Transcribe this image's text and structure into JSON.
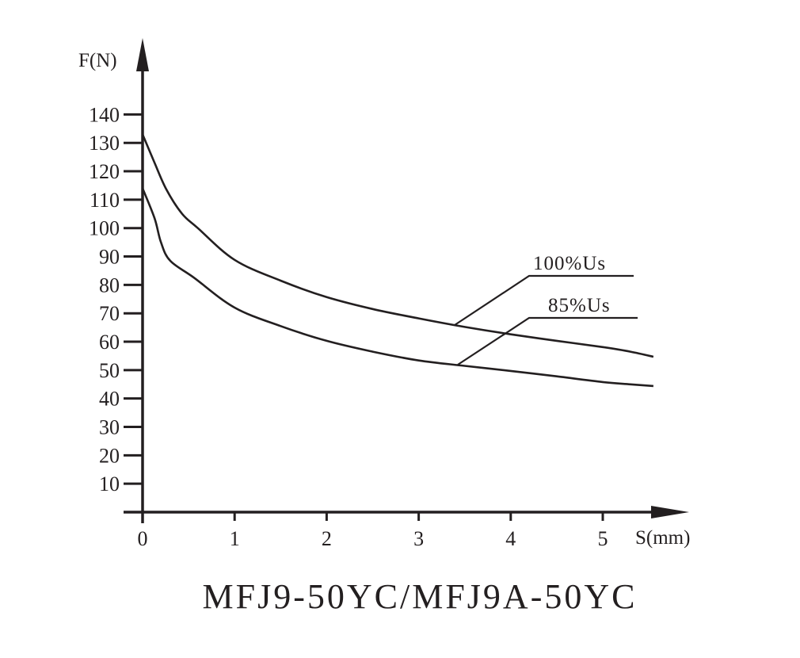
{
  "chart_data": {
    "type": "line",
    "title": "MFJ9-50YC/MFJ9A-50YC",
    "xlabel": "S(mm)",
    "ylabel": "F(N)",
    "xlim": [
      0,
      5.6
    ],
    "ylim": [
      0,
      140
    ],
    "grid": false,
    "x_ticks": [
      "0",
      "1",
      "2",
      "3",
      "4",
      "5"
    ],
    "y_ticks": [
      "140",
      "130",
      "120",
      "110",
      "100",
      "90",
      "80",
      "70",
      "60",
      "50",
      "40",
      "30",
      "20",
      "10"
    ],
    "legend_position": "inline-leader-lines",
    "series": [
      {
        "name": "100%Us",
        "x": [
          0,
          0.13,
          0.26,
          0.43,
          0.6,
          1.0,
          1.5,
          2.0,
          2.5,
          3.0,
          3.5,
          4.0,
          4.5,
          5.0,
          5.3,
          5.55
        ],
        "y": [
          133,
          123,
          113.5,
          105,
          100,
          88.8,
          81.5,
          75.7,
          71.5,
          68.2,
          65.2,
          62.6,
          60.3,
          58.1,
          56.5,
          54.7
        ]
      },
      {
        "name": "85%Us",
        "x": [
          0,
          0.13,
          0.2,
          0.3,
          0.56,
          1.0,
          1.5,
          2.0,
          2.5,
          3.0,
          3.5,
          4.0,
          4.5,
          5.0,
          5.3,
          5.55
        ],
        "y": [
          114,
          103.5,
          95,
          88.5,
          82.5,
          72,
          65.5,
          60.3,
          56.5,
          53.4,
          51.5,
          49.7,
          47.8,
          45.8,
          45,
          44.4
        ]
      }
    ],
    "annotations": [
      {
        "text": "100%Us",
        "anchor_x": 3.4,
        "anchor_y": 65.5
      },
      {
        "text": "85%Us",
        "anchor_x": 3.45,
        "anchor_y": 51.5
      }
    ]
  },
  "colors": {
    "ink": "#231f20",
    "background": "#ffffff"
  }
}
